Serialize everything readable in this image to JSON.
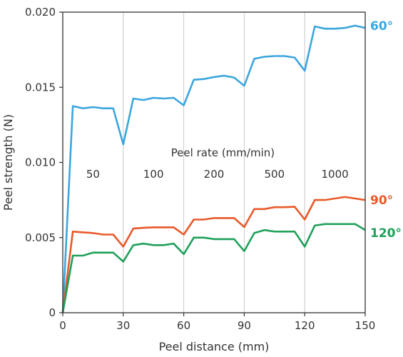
{
  "chart_data": {
    "type": "line",
    "title": "",
    "xlabel": "Peel distance (mm)",
    "ylabel": "Peel strength (N)",
    "xlim": [
      0,
      150
    ],
    "ylim": [
      0,
      0.02
    ],
    "x_ticks": [
      0,
      30,
      60,
      90,
      120,
      150
    ],
    "x_tick_labels": [
      "0",
      "30",
      "60",
      "90",
      "120",
      "150"
    ],
    "y_ticks": [
      0,
      0.005,
      0.01,
      0.015,
      0.02
    ],
    "y_tick_labels": [
      "0",
      "0.005",
      "0.010",
      "0.015",
      "0.020"
    ],
    "grid": "vertical lines at 30, 60, 90, 120",
    "annotation": {
      "title": "Peel rate (mm/min)",
      "labels": [
        "50",
        "100",
        "200",
        "500",
        "1000"
      ]
    },
    "series": [
      {
        "name": "60°",
        "color": "#3aa6dd",
        "x": [
          0,
          5,
          10,
          15,
          20,
          25,
          30,
          35,
          40,
          45,
          50,
          55,
          60,
          65,
          70,
          75,
          80,
          85,
          90,
          95,
          100,
          105,
          110,
          115,
          120,
          125,
          130,
          135,
          140,
          145,
          150
        ],
        "y": [
          0.0,
          0.01375,
          0.0136,
          0.01368,
          0.0136,
          0.0136,
          0.0112,
          0.01425,
          0.01415,
          0.0143,
          0.01425,
          0.0143,
          0.0138,
          0.0155,
          0.01555,
          0.01568,
          0.01577,
          0.01565,
          0.0151,
          0.0169,
          0.01703,
          0.01708,
          0.01708,
          0.01698,
          0.0161,
          0.01905,
          0.0189,
          0.0189,
          0.01895,
          0.0191,
          0.01895
        ]
      },
      {
        "name": "90°",
        "color": "#e8592a",
        "x": [
          0,
          5,
          10,
          15,
          20,
          25,
          30,
          35,
          40,
          45,
          50,
          55,
          60,
          65,
          70,
          75,
          80,
          85,
          90,
          95,
          100,
          105,
          110,
          115,
          120,
          125,
          130,
          135,
          140,
          145,
          150
        ],
        "y": [
          0.0,
          0.0054,
          0.00535,
          0.0053,
          0.0052,
          0.0052,
          0.0044,
          0.0056,
          0.00565,
          0.00568,
          0.00568,
          0.00568,
          0.0052,
          0.0062,
          0.0062,
          0.0063,
          0.0063,
          0.0063,
          0.0057,
          0.0069,
          0.0069,
          0.00702,
          0.00702,
          0.00705,
          0.0062,
          0.0075,
          0.0075,
          0.0076,
          0.0077,
          0.0076,
          0.0075
        ]
      },
      {
        "name": "120°",
        "color": "#1fa05a",
        "x": [
          0,
          5,
          10,
          15,
          20,
          25,
          30,
          35,
          40,
          45,
          50,
          55,
          60,
          65,
          70,
          75,
          80,
          85,
          90,
          95,
          100,
          105,
          110,
          115,
          120,
          125,
          130,
          135,
          140,
          145,
          150
        ],
        "y": [
          0.0,
          0.0038,
          0.0038,
          0.004,
          0.004,
          0.004,
          0.0034,
          0.0045,
          0.0046,
          0.0045,
          0.0045,
          0.0046,
          0.0039,
          0.005,
          0.005,
          0.0049,
          0.0049,
          0.0049,
          0.0041,
          0.0053,
          0.0055,
          0.0054,
          0.0054,
          0.0054,
          0.0044,
          0.0058,
          0.0059,
          0.0059,
          0.0059,
          0.0059,
          0.0055
        ]
      }
    ]
  }
}
